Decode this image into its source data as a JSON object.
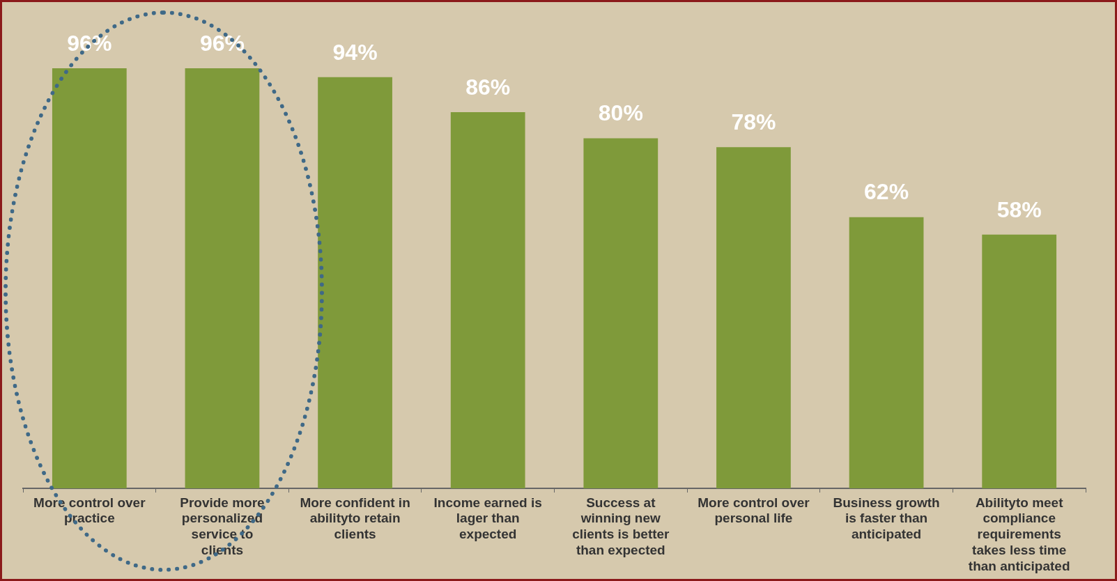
{
  "chart_data": {
    "type": "bar",
    "categories": [
      "More control over practice",
      "Provide more personalized service to clients",
      "More confident in abilityto retain clients",
      "Income earned is lager than expected",
      "Success at winning new clients is better than expected",
      "More control over personal life",
      "Business growth is faster than anticipated",
      "Abilityto meet compliance requirements takes less time than anticipated"
    ],
    "values": [
      96,
      96,
      94,
      86,
      80,
      78,
      62,
      58
    ],
    "value_labels": [
      "96%",
      "96%",
      "94%",
      "86%",
      "80%",
      "78%",
      "62%",
      "58%"
    ],
    "color": "#7f9a3a",
    "grid": false,
    "legend": false
  }
}
